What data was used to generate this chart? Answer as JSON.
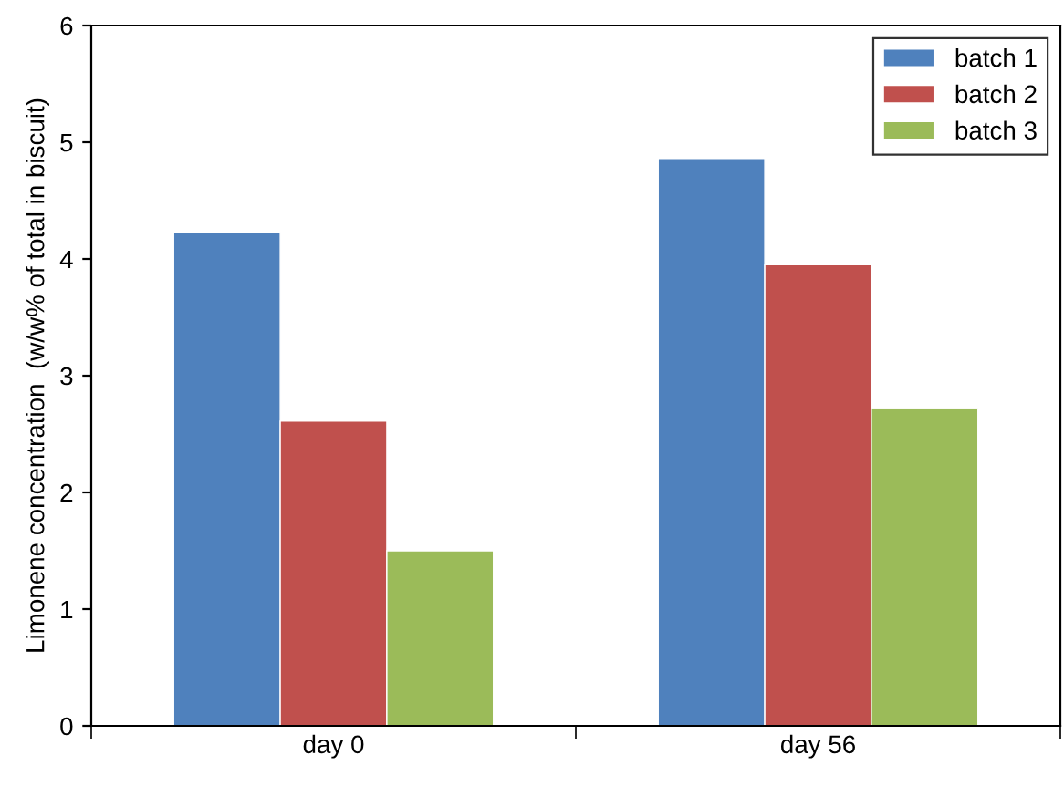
{
  "chart_data": {
    "type": "bar",
    "ylabel": "Limonene concentration  (w/w% of total in biscuit)",
    "categories": [
      "day 0",
      "day 56"
    ],
    "series": [
      {
        "name": "batch 1",
        "color": "#4f81bd",
        "values": [
          4.23,
          4.86
        ]
      },
      {
        "name": "batch 2",
        "color": "#c0504d",
        "values": [
          2.61,
          3.95
        ]
      },
      {
        "name": "batch 3",
        "color": "#9bbb59",
        "values": [
          1.5,
          2.72
        ]
      }
    ],
    "ylim": [
      0,
      6
    ],
    "yticks": [
      0,
      1,
      2,
      3,
      4,
      5,
      6
    ],
    "grid": false,
    "legend": "top right"
  }
}
